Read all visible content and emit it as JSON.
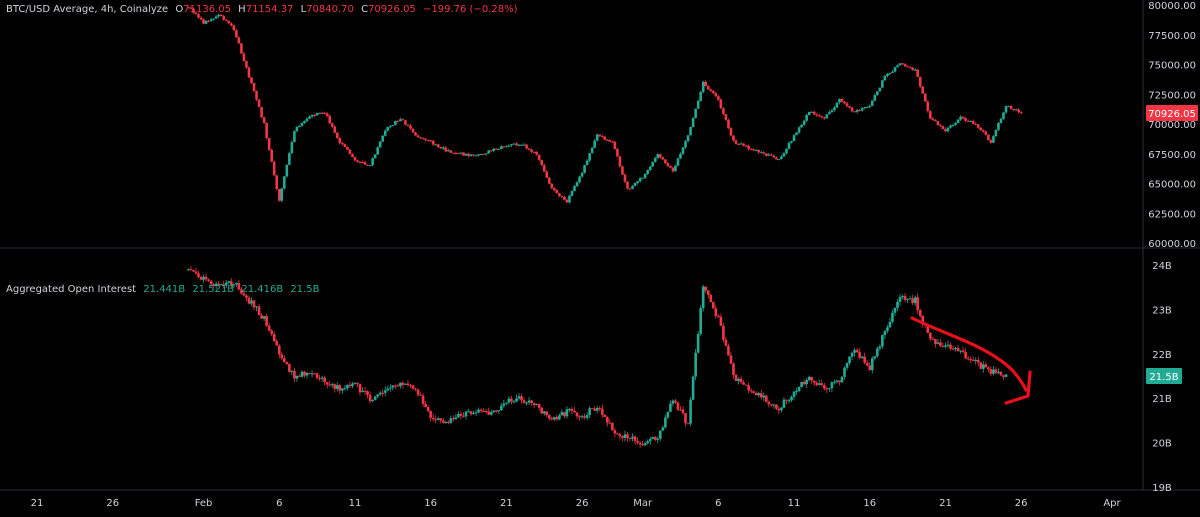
{
  "colors": {
    "background": "#000000",
    "up": "#22ab94",
    "down": "#f23645",
    "text": "#d1d4dc",
    "divider": "#2a2e39",
    "annotation": "#e8101a"
  },
  "price_legend": {
    "symbol": "BTC/USD Average, 4h, Coinalyze",
    "o_label": "O",
    "o": "71136.05",
    "h_label": "H",
    "h": "71154.37",
    "l_label": "L",
    "l": "70840.70",
    "c_label": "C",
    "c": "70926.05",
    "change": "−199.76 (−0.28%)"
  },
  "oi_legend": {
    "name": "Aggregated Open Interest",
    "o": "21.441B",
    "h": "21.521B",
    "l": "21.416B",
    "c": "21.5B"
  },
  "chart_data": [
    {
      "id": "price",
      "type": "candlestick",
      "title": "BTC/USD Average, 4h, Coinalyze",
      "x_ticks": [
        "21",
        "26",
        "Feb",
        "6",
        "11",
        "16",
        "21",
        "26",
        "Mar",
        "6",
        "11",
        "16",
        "21",
        "26",
        "Apr"
      ],
      "x_tick_dates": [
        "2024-01-21",
        "2024-01-26",
        "2024-02-01",
        "2024-02-06",
        "2024-02-11",
        "2024-02-16",
        "2024-02-21",
        "2024-02-26",
        "2024-03-01",
        "2024-03-06",
        "2024-03-11",
        "2024-03-16",
        "2024-03-21",
        "2024-03-26",
        "2024-04-01"
      ],
      "y_ticks": [
        "60000.00",
        "62500.00",
        "65000.00",
        "67500.00",
        "70000.00",
        "72500.00",
        "75000.00",
        "77500.00",
        "80000.00"
      ],
      "ylim": [
        60000,
        80000
      ],
      "last_value": "70926.05",
      "last_value_raw": 70926.05,
      "series": [
        {
          "date": "2024-01-31",
          "close": 79800
        },
        {
          "date": "2024-02-01",
          "close": 78500
        },
        {
          "date": "2024-02-02",
          "close": 79200
        },
        {
          "date": "2024-02-03",
          "close": 78000
        },
        {
          "date": "2024-02-04",
          "close": 74000
        },
        {
          "date": "2024-02-05",
          "close": 70000
        },
        {
          "date": "2024-02-06",
          "close": 63500
        },
        {
          "date": "2024-02-07",
          "close": 69500
        },
        {
          "date": "2024-02-08",
          "close": 70600
        },
        {
          "date": "2024-02-09",
          "close": 71000
        },
        {
          "date": "2024-02-10",
          "close": 68500
        },
        {
          "date": "2024-02-11",
          "close": 67000
        },
        {
          "date": "2024-02-12",
          "close": 66500
        },
        {
          "date": "2024-02-13",
          "close": 69500
        },
        {
          "date": "2024-02-14",
          "close": 70500
        },
        {
          "date": "2024-02-15",
          "close": 69000
        },
        {
          "date": "2024-02-16",
          "close": 68500
        },
        {
          "date": "2024-02-17",
          "close": 67800
        },
        {
          "date": "2024-02-18",
          "close": 67500
        },
        {
          "date": "2024-02-19",
          "close": 67300
        },
        {
          "date": "2024-02-20",
          "close": 67800
        },
        {
          "date": "2024-02-21",
          "close": 68200
        },
        {
          "date": "2024-02-22",
          "close": 68300
        },
        {
          "date": "2024-02-23",
          "close": 67500
        },
        {
          "date": "2024-02-24",
          "close": 64500
        },
        {
          "date": "2024-02-25",
          "close": 63500
        },
        {
          "date": "2024-02-26",
          "close": 66000
        },
        {
          "date": "2024-02-27",
          "close": 69000
        },
        {
          "date": "2024-02-28",
          "close": 68500
        },
        {
          "date": "2024-02-29",
          "close": 64500
        },
        {
          "date": "2024-03-01",
          "close": 65500
        },
        {
          "date": "2024-03-02",
          "close": 67500
        },
        {
          "date": "2024-03-03",
          "close": 66000
        },
        {
          "date": "2024-03-04",
          "close": 69000
        },
        {
          "date": "2024-03-05",
          "close": 73500
        },
        {
          "date": "2024-03-06",
          "close": 72000
        },
        {
          "date": "2024-03-07",
          "close": 68500
        },
        {
          "date": "2024-03-08",
          "close": 68000
        },
        {
          "date": "2024-03-09",
          "close": 67500
        },
        {
          "date": "2024-03-10",
          "close": 67000
        },
        {
          "date": "2024-03-11",
          "close": 69000
        },
        {
          "date": "2024-03-12",
          "close": 71000
        },
        {
          "date": "2024-03-13",
          "close": 70500
        },
        {
          "date": "2024-03-14",
          "close": 72000
        },
        {
          "date": "2024-03-15",
          "close": 71000
        },
        {
          "date": "2024-03-16",
          "close": 71500
        },
        {
          "date": "2024-03-17",
          "close": 74000
        },
        {
          "date": "2024-03-18",
          "close": 75000
        },
        {
          "date": "2024-03-19",
          "close": 74500
        },
        {
          "date": "2024-03-20",
          "close": 70500
        },
        {
          "date": "2024-03-21",
          "close": 69500
        },
        {
          "date": "2024-03-22",
          "close": 70500
        },
        {
          "date": "2024-03-23",
          "close": 70000
        },
        {
          "date": "2024-03-24",
          "close": 68500
        },
        {
          "date": "2024-03-25",
          "close": 71500
        },
        {
          "date": "2024-03-26",
          "close": 70926
        }
      ]
    },
    {
      "id": "open-interest",
      "type": "candlestick",
      "title": "Aggregated Open Interest",
      "y_ticks": [
        "19B",
        "20B",
        "21B",
        "22B",
        "23B",
        "24B"
      ],
      "ylim": [
        19,
        24
      ],
      "last_value": "21.5B",
      "last_value_raw": 21.5,
      "series": [
        {
          "date": "2024-01-31",
          "close": 23.9
        },
        {
          "date": "2024-02-01",
          "close": 23.7
        },
        {
          "date": "2024-02-02",
          "close": 23.5
        },
        {
          "date": "2024-02-03",
          "close": 23.6
        },
        {
          "date": "2024-02-04",
          "close": 23.2
        },
        {
          "date": "2024-02-05",
          "close": 22.8
        },
        {
          "date": "2024-02-06",
          "close": 22.0
        },
        {
          "date": "2024-02-07",
          "close": 21.5
        },
        {
          "date": "2024-02-08",
          "close": 21.6
        },
        {
          "date": "2024-02-09",
          "close": 21.4
        },
        {
          "date": "2024-02-10",
          "close": 21.2
        },
        {
          "date": "2024-02-11",
          "close": 21.3
        },
        {
          "date": "2024-02-12",
          "close": 21.0
        },
        {
          "date": "2024-02-13",
          "close": 21.2
        },
        {
          "date": "2024-02-14",
          "close": 21.3
        },
        {
          "date": "2024-02-15",
          "close": 21.2
        },
        {
          "date": "2024-02-16",
          "close": 20.6
        },
        {
          "date": "2024-02-17",
          "close": 20.5
        },
        {
          "date": "2024-02-18",
          "close": 20.6
        },
        {
          "date": "2024-02-19",
          "close": 20.7
        },
        {
          "date": "2024-02-20",
          "close": 20.7
        },
        {
          "date": "2024-02-21",
          "close": 20.9
        },
        {
          "date": "2024-02-22",
          "close": 21.0
        },
        {
          "date": "2024-02-23",
          "close": 20.8
        },
        {
          "date": "2024-02-24",
          "close": 20.5
        },
        {
          "date": "2024-02-25",
          "close": 20.7
        },
        {
          "date": "2024-02-26",
          "close": 20.6
        },
        {
          "date": "2024-02-27",
          "close": 20.8
        },
        {
          "date": "2024-02-28",
          "close": 20.3
        },
        {
          "date": "2024-02-29",
          "close": 20.1
        },
        {
          "date": "2024-03-01",
          "close": 20.0
        },
        {
          "date": "2024-03-02",
          "close": 20.1
        },
        {
          "date": "2024-03-03",
          "close": 21.0
        },
        {
          "date": "2024-03-04",
          "close": 20.4
        },
        {
          "date": "2024-03-05",
          "close": 23.5
        },
        {
          "date": "2024-03-06",
          "close": 22.8
        },
        {
          "date": "2024-03-07",
          "close": 21.5
        },
        {
          "date": "2024-03-08",
          "close": 21.2
        },
        {
          "date": "2024-03-09",
          "close": 21.0
        },
        {
          "date": "2024-03-10",
          "close": 20.8
        },
        {
          "date": "2024-03-11",
          "close": 21.1
        },
        {
          "date": "2024-03-12",
          "close": 21.5
        },
        {
          "date": "2024-03-13",
          "close": 21.2
        },
        {
          "date": "2024-03-14",
          "close": 21.4
        },
        {
          "date": "2024-03-15",
          "close": 22.1
        },
        {
          "date": "2024-03-16",
          "close": 21.7
        },
        {
          "date": "2024-03-17",
          "close": 22.5
        },
        {
          "date": "2024-03-18",
          "close": 23.3
        },
        {
          "date": "2024-03-19",
          "close": 23.2
        },
        {
          "date": "2024-03-20",
          "close": 22.3
        },
        {
          "date": "2024-03-21",
          "close": 22.2
        },
        {
          "date": "2024-03-22",
          "close": 22.0
        },
        {
          "date": "2024-03-23",
          "close": 21.8
        },
        {
          "date": "2024-03-24",
          "close": 21.6
        },
        {
          "date": "2024-03-25",
          "close": 21.5
        }
      ]
    }
  ]
}
